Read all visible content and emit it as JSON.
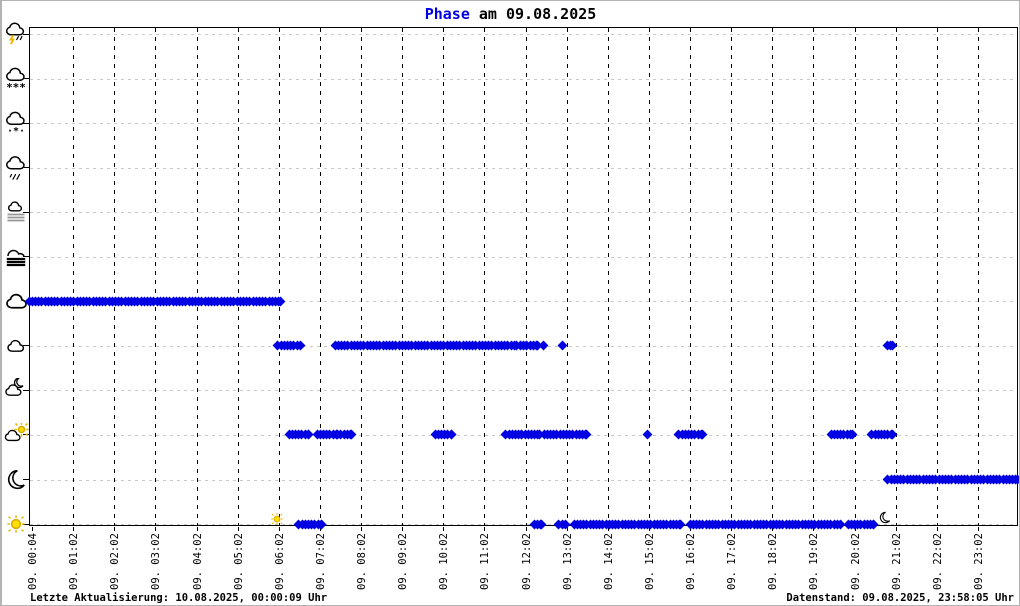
{
  "page": {
    "title_accent": "Phase",
    "title_rest": " am 09.08.2025"
  },
  "footer": {
    "left": "Letzte Aktualisierung: 10.08.2025, 00:00:09 Uhr",
    "right": "Datenstand: 09.08.2025, 23:58:05 Uhr"
  },
  "chart_data": {
    "type": "scatter",
    "title": "Phase am 09.08.2025",
    "legend": "none",
    "grid": true,
    "series_color": "#0000e2",
    "sun_color": "#e8b800",
    "x_tick_labels": [
      "09. 00:04",
      "09. 01:02",
      "09. 02:02",
      "09. 03:02",
      "09. 04:02",
      "09. 05:02",
      "09. 06:02",
      "09. 07:02",
      "09. 08:02",
      "09. 09:02",
      "09. 10:02",
      "09. 11:02",
      "09. 12:02",
      "09. 13:02",
      "09. 14:02",
      "09. 15:02",
      "09. 16:02",
      "09. 17:02",
      "09. 18:02",
      "09. 19:02",
      "09. 20:02",
      "09. 21:02",
      "09. 22:02",
      "09. 23:02"
    ],
    "y_levels": [
      "thunderstorm",
      "snow",
      "sleet",
      "rain",
      "mist",
      "fog",
      "overcast",
      "cloudy",
      "night-partly-cloudy",
      "day-partly-cloudy",
      "night-clear",
      "day-clear"
    ],
    "series": [
      {
        "name": "weather-phase",
        "segments": [
          {
            "level": 6,
            "from": -0.07,
            "to": 6.03
          },
          {
            "level": 7,
            "from": 5.98,
            "to": 6.52
          },
          {
            "level": 7,
            "from": 7.37,
            "to": 11.72
          },
          {
            "level": 7,
            "from": 11.79,
            "to": 12.03
          },
          {
            "level": 7,
            "from": 12.11,
            "to": 12.3
          },
          {
            "level": 7,
            "from": 12.38,
            "to": 12.47
          },
          {
            "level": 7,
            "from": 12.86,
            "to": 12.96
          },
          {
            "level": 7,
            "from": 20.79,
            "to": 20.93
          },
          {
            "level": 9,
            "from": 6.25,
            "to": 6.73
          },
          {
            "level": 9,
            "from": 6.93,
            "to": 7.42
          },
          {
            "level": 9,
            "from": 7.51,
            "to": 7.76
          },
          {
            "level": 9,
            "from": 9.8,
            "to": 10.21
          },
          {
            "level": 9,
            "from": 11.52,
            "to": 11.91
          },
          {
            "level": 9,
            "from": 11.99,
            "to": 12.33
          },
          {
            "level": 9,
            "from": 12.45,
            "to": 13.49
          },
          {
            "level": 9,
            "from": 14.9,
            "to": 15.02
          },
          {
            "level": 9,
            "from": 15.73,
            "to": 16.31
          },
          {
            "level": 9,
            "from": 19.43,
            "to": 19.96
          },
          {
            "level": 9,
            "from": 20.42,
            "to": 20.91
          },
          {
            "level": 10,
            "from": 20.81,
            "to": 23.97
          },
          {
            "level": 11,
            "from": 6.49,
            "to": 7.05
          },
          {
            "level": 11,
            "from": 12.21,
            "to": 12.38
          },
          {
            "level": 11,
            "from": 12.81,
            "to": 12.96
          },
          {
            "level": 11,
            "from": 13.18,
            "to": 15.76
          },
          {
            "level": 11,
            "from": 16.0,
            "to": 19.65
          },
          {
            "level": 11,
            "from": 19.84,
            "to": 20.47
          }
        ]
      }
    ],
    "markers": [
      {
        "type": "sunrise-sun",
        "tick": 5.96
      },
      {
        "type": "sunset-moon",
        "tick": 20.76
      }
    ]
  }
}
